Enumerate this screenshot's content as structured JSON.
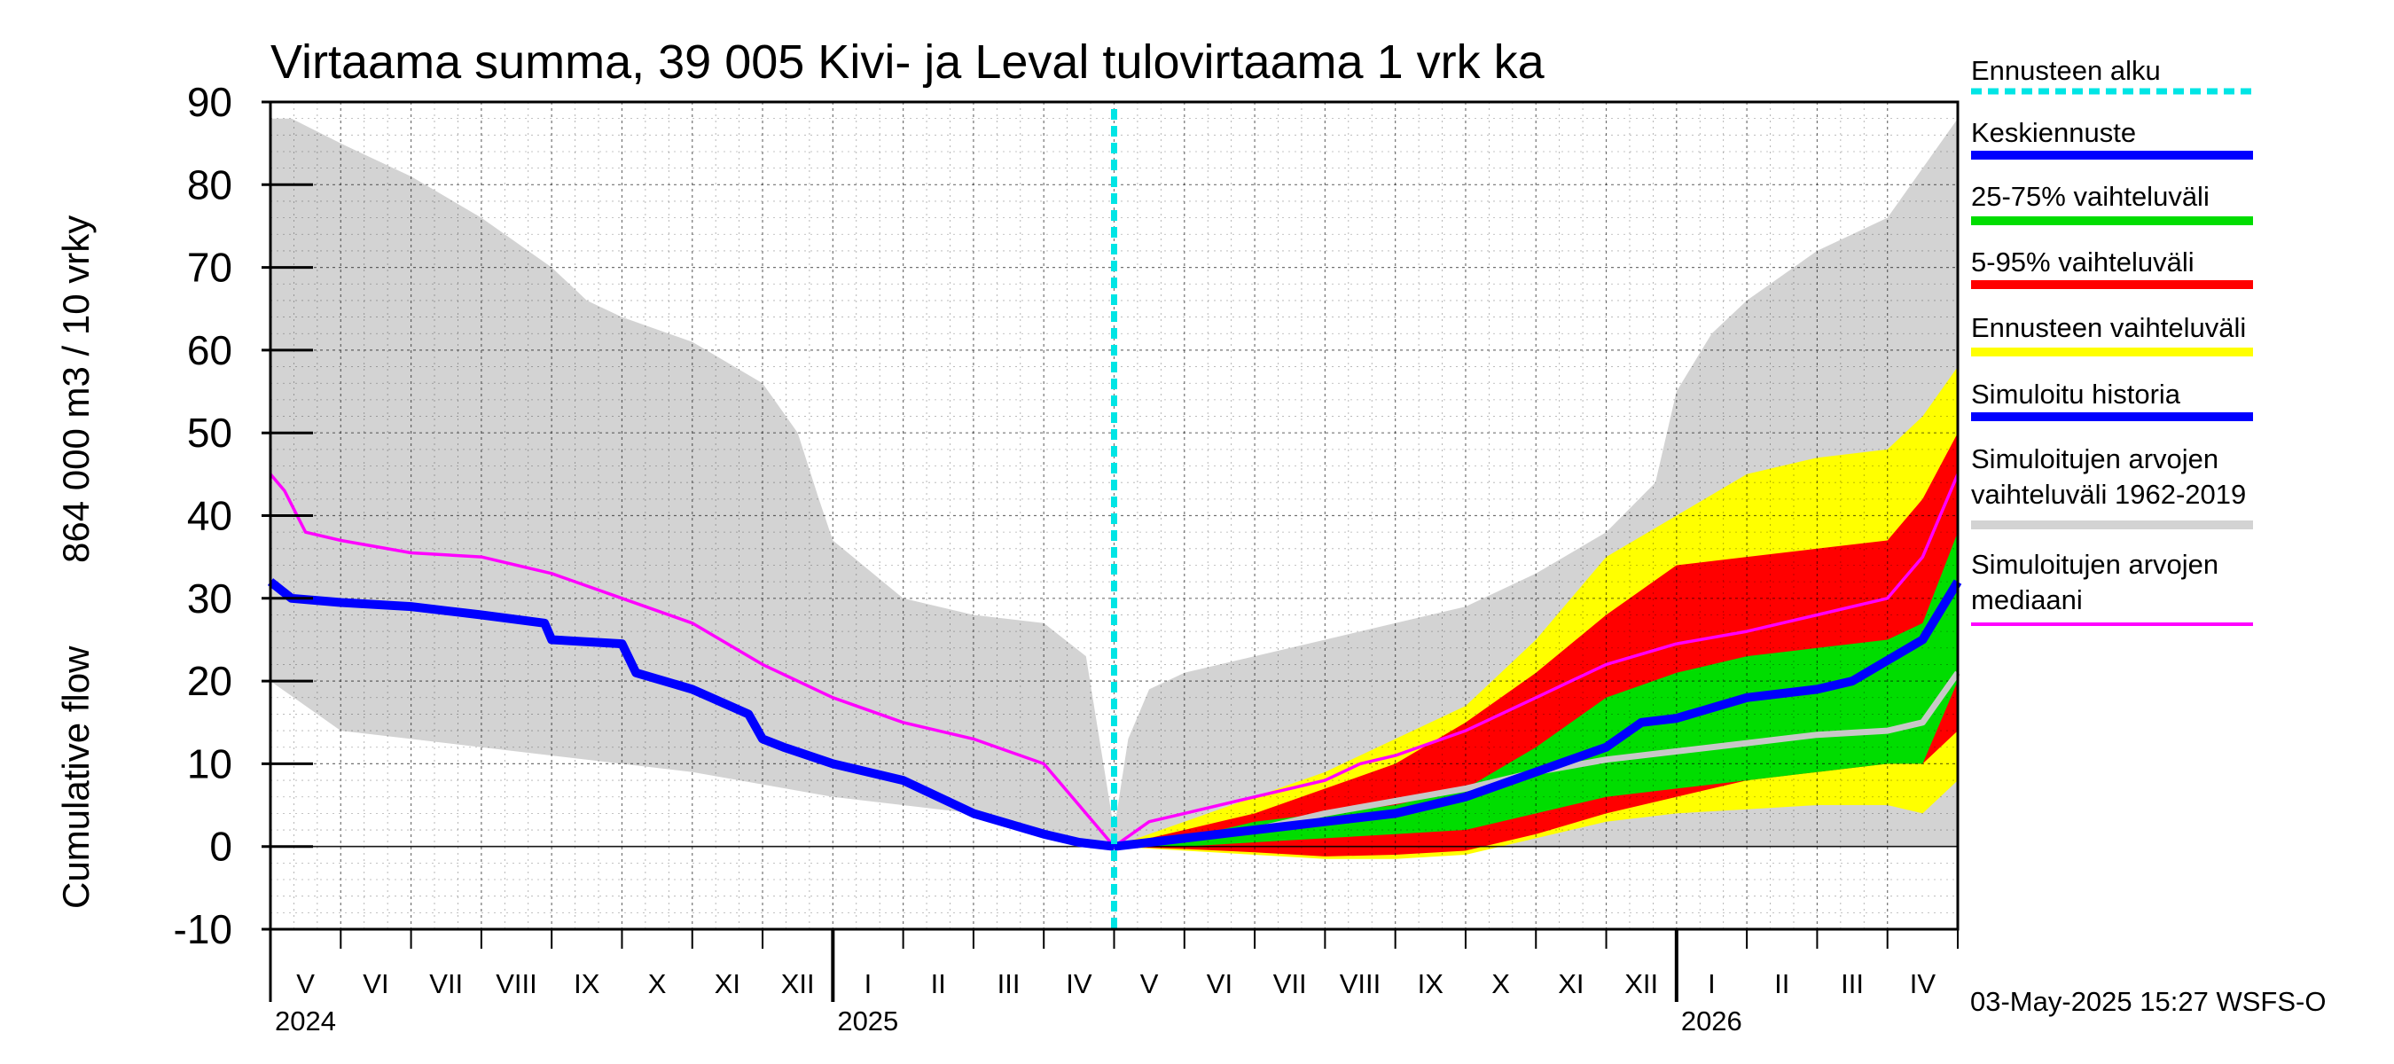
{
  "chart_data": {
    "type": "area",
    "title": "Virtaama summa, 39 005 Kivi- ja Leval tulovirtaama 1 vrk ka",
    "ylabel_line1": "Cumulative flow",
    "ylabel_line2": "864 000 m3 / 10 vrky",
    "ylim": [
      -10,
      90
    ],
    "yticks": [
      "-10",
      "0",
      "10",
      "20",
      "30",
      "40",
      "50",
      "60",
      "70",
      "80",
      "90"
    ],
    "months": [
      "V",
      "VI",
      "VII",
      "VIII",
      "IX",
      "X",
      "XI",
      "XII",
      "I",
      "II",
      "III",
      "IV",
      "V",
      "VI",
      "VII",
      "VIII",
      "IX",
      "X",
      "XI",
      "XII",
      "I",
      "II",
      "III",
      "IV"
    ],
    "years": [
      {
        "label": "2024",
        "month_index": 0
      },
      {
        "label": "2025",
        "month_index": 8
      },
      {
        "label": "2026",
        "month_index": 20
      }
    ],
    "forecast_start_month": 12,
    "x_unit": "months since 1 May 2024",
    "series": [
      {
        "name": "Simuloitujen arvojen vaihteluväli 1962-2019 (upper)",
        "x": [
          0,
          0.3,
          1,
          2,
          3,
          4,
          4.5,
          5,
          6,
          7,
          7.5,
          7.8,
          8,
          9,
          10,
          11,
          11.6,
          12,
          12.2,
          12.5,
          13,
          14,
          15,
          16,
          17,
          18,
          19,
          19.7,
          20,
          20.5,
          21,
          22,
          23,
          23.5,
          24
        ],
        "values": [
          88,
          88,
          85,
          81,
          76,
          70,
          66,
          64,
          61,
          56,
          50,
          42,
          37,
          30,
          28,
          27,
          23,
          2,
          13,
          19,
          21,
          23,
          25,
          27,
          29,
          33,
          38,
          44,
          55,
          62,
          66,
          72,
          76,
          82,
          88
        ]
      },
      {
        "name": "Simuloitujen arvojen vaihteluväli 1962-2019 (lower)",
        "x": [
          0,
          1,
          2,
          4,
          6,
          8,
          10,
          11,
          12,
          24
        ],
        "values": [
          20,
          14,
          13,
          11,
          9,
          6,
          4,
          2,
          0,
          0
        ]
      },
      {
        "name": "Ennusteen vaihteluväli (upper)",
        "x": [
          12,
          13,
          14,
          15,
          16,
          17,
          18,
          19,
          20,
          21,
          22,
          23,
          23.5,
          24
        ],
        "values": [
          0,
          3,
          6,
          9,
          13,
          17,
          25,
          35,
          40,
          45,
          47,
          48,
          52,
          58
        ]
      },
      {
        "name": "Ennusteen vaihteluväli (lower)",
        "x": [
          12,
          13,
          14,
          15,
          16,
          17,
          18,
          19,
          20,
          21,
          22,
          23,
          23.5,
          24
        ],
        "values": [
          0,
          -0.5,
          -1,
          -1.5,
          -1.5,
          -1,
          1,
          3,
          4,
          4.5,
          5,
          5,
          4,
          8
        ]
      },
      {
        "name": "5-95% vaihteluväli (upper)",
        "x": [
          12,
          13,
          14,
          15,
          16,
          17,
          18,
          19,
          20,
          21,
          22,
          23,
          23.5,
          24
        ],
        "values": [
          0,
          2,
          4,
          7,
          10,
          15,
          21,
          28,
          34,
          35,
          36,
          37,
          42,
          50
        ]
      },
      {
        "name": "5-95% vaihteluväli (lower)",
        "x": [
          12,
          13,
          14,
          15,
          16,
          17,
          18,
          19,
          20,
          21,
          22,
          23,
          23.5,
          24
        ],
        "values": [
          0,
          -0.3,
          -0.7,
          -1.2,
          -1,
          -0.5,
          1.5,
          4,
          6,
          8,
          9,
          10,
          10,
          14
        ]
      },
      {
        "name": "25-75% vaihteluväli (upper)",
        "x": [
          12,
          13,
          14,
          15,
          16,
          17,
          18,
          19,
          20,
          21,
          22,
          23,
          23.5,
          24
        ],
        "values": [
          0,
          1,
          3,
          4,
          5,
          7,
          12,
          18,
          21,
          23,
          24,
          25,
          27,
          38
        ]
      },
      {
        "name": "25-75% vaihteluväli (lower)",
        "x": [
          12,
          13,
          14,
          15,
          16,
          17,
          18,
          19,
          20,
          21,
          22,
          23,
          23.5,
          24
        ],
        "values": [
          0,
          0,
          0.5,
          1,
          1.5,
          2,
          4,
          6,
          7,
          8,
          9,
          10,
          10,
          20
        ]
      },
      {
        "name": "Simuloitujen arvojen mediaani",
        "x": [
          0,
          0.2,
          0.5,
          1,
          2,
          3,
          4,
          5,
          6,
          7,
          8,
          9,
          10,
          11,
          11.5,
          12,
          12.5,
          13,
          14,
          15,
          15.5,
          16,
          17,
          18,
          19,
          20,
          21,
          22,
          23,
          23.5,
          24
        ],
        "values": [
          45,
          43,
          38,
          37,
          35.5,
          35,
          33,
          30,
          27,
          22,
          18,
          15,
          13,
          10,
          5,
          0,
          3,
          4,
          6,
          8,
          10,
          11,
          14,
          18,
          22,
          24.5,
          26,
          28,
          30,
          35,
          45
        ]
      },
      {
        "name": "Simuloitu historia",
        "x": [
          0,
          0.3,
          1,
          2,
          3,
          3.9,
          4,
          5,
          5.2,
          6,
          6.8,
          7,
          7.3,
          8,
          9,
          10,
          11,
          11.5,
          12
        ],
        "values": [
          32,
          30,
          29.5,
          29,
          28,
          27,
          25,
          24.5,
          21,
          19,
          16,
          13,
          12,
          10,
          8,
          4,
          1.5,
          0.5,
          0
        ]
      },
      {
        "name": "Keskiennuste",
        "x": [
          12,
          13,
          14,
          15,
          16,
          17,
          18,
          19,
          19.5,
          20,
          21,
          22,
          22.5,
          23,
          23.5,
          24
        ],
        "values": [
          0,
          1,
          2,
          3,
          4,
          6,
          9,
          12,
          15,
          15.5,
          18,
          19,
          20,
          22.5,
          25,
          32
        ]
      },
      {
        "name": "Simuloitujen arvojen vaihteluväli mediaani (grey)",
        "x": [
          12,
          13,
          14,
          15,
          16,
          17,
          18,
          19,
          20,
          21,
          22,
          23,
          23.5,
          24
        ],
        "values": [
          0,
          1,
          2,
          4,
          5.5,
          7,
          9,
          10.5,
          11.5,
          12.5,
          13.5,
          14,
          15,
          21
        ]
      }
    ],
    "legend": [
      {
        "label": "Ennusteen alku",
        "color": "#00e5e5",
        "style": "dashed"
      },
      {
        "label": "Keskiennuste",
        "color": "#0000ff",
        "style": "solid"
      },
      {
        "label": "25-75% vaihteluväli",
        "color": "#00dd00",
        "style": "solid"
      },
      {
        "label": "5-95% vaihteluväli",
        "color": "#ff0000",
        "style": "solid"
      },
      {
        "label": "Ennusteen vaihteluväli",
        "color": "#ffff00",
        "style": "solid"
      },
      {
        "label": "Simuloitu historia",
        "color": "#0000ff",
        "style": "solid"
      },
      {
        "label": "Simuloitujen arvojen vaihteluväli 1962-2019",
        "lines": [
          "Simuloitujen arvojen",
          "vaihteluväli 1962-2019"
        ],
        "color": "#d3d3d3",
        "style": "solid"
      },
      {
        "label": "Simuloitujen arvojen mediaani",
        "lines": [
          "Simuloitujen arvojen",
          "mediaani"
        ],
        "color": "#ff00ff",
        "style": "solid"
      }
    ],
    "footer": "03-May-2025 15:27 WSFS-O",
    "colors": {
      "range_grey": "#d3d3d3",
      "forecast_yellow": "#ffff00",
      "p5_95_red": "#ff0000",
      "p25_75_green": "#00dd00",
      "median_magenta": "#ff00ff",
      "history_blue": "#0000ff",
      "forecast_start_cyan": "#00e5e5",
      "grey_median": "#c8c8c8"
    }
  }
}
